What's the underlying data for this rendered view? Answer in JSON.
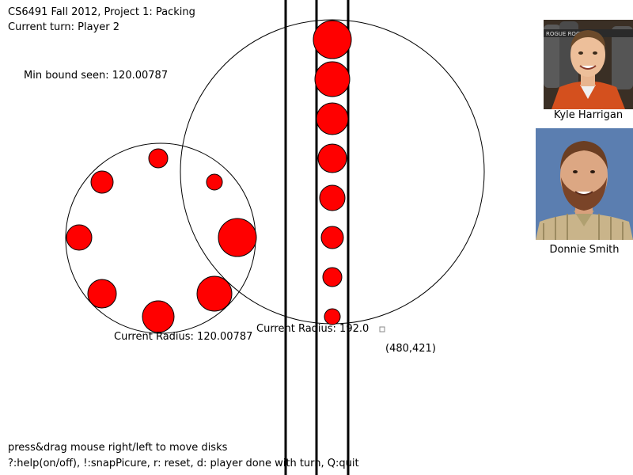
{
  "header": {
    "title": "CS6491 Fall 2012, Project 1: Packing",
    "turn": "Current turn: Player 2"
  },
  "stats": {
    "min_bound": "Min bound seen: 120.00787",
    "left_radius": "Current Radius: 120.00787",
    "right_radius": "Current Radius: 192.0",
    "mouse_coords": "(480,421)"
  },
  "authors": {
    "top_name": "Kyle Harrigan",
    "bottom_name": "Donnie Smith",
    "photo_sign_text": "ROGUE ROGUE"
  },
  "help": {
    "line1": "press&drag mouse right/left to move disks",
    "line2": "?:help(on/off), !:snapPicure,  r: reset, d: player done with turn, Q:quit"
  },
  "colors": {
    "disk": "#ff0000",
    "outline": "#000000",
    "background": "#ffffff"
  }
}
